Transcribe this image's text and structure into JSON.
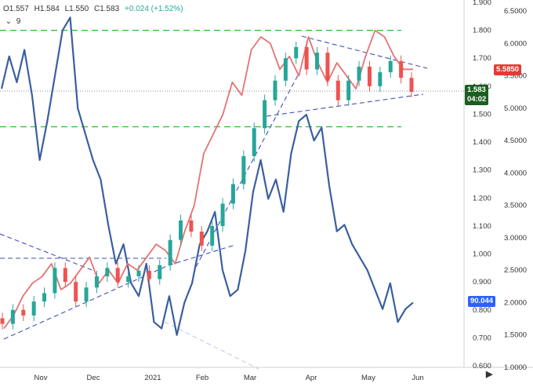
{
  "header": {
    "open": "O1.557",
    "high": "H1.584",
    "low": "L1.550",
    "close": "C1.583",
    "change": "+0.024 (+1.52%)",
    "indicator_count": "9"
  },
  "tags": {
    "price": "1.583",
    "countdown": "04:02",
    "red_value": "5.5850",
    "blue_value": "90.044"
  },
  "colors": {
    "up": "#26a69a",
    "down": "#ef5350",
    "blue_line": "#3a5fa0",
    "red_line": "#e57373",
    "dashed_blue": "#3f51b5",
    "dashed_green": "#2ebd2e",
    "price_tag": "#1b5e20",
    "blue_tag": "#2962ff",
    "red_tag": "#e53935"
  },
  "chart_data": {
    "type": "line",
    "x_ticks": [
      "Nov",
      "Dec",
      "2021",
      "Feb",
      "Mar",
      "Apr",
      "May",
      "Jun"
    ],
    "y_left_ticks": [
      "1.900",
      "1.800",
      "1.700",
      "1.600",
      "1.500",
      "1.400",
      "1.300",
      "1.200",
      "1.100",
      "1.000",
      "0.900",
      "0.800",
      "0.700",
      "0.600"
    ],
    "y_right_ticks": [
      "6.5000",
      "6.0000",
      "5.5000",
      "5.0000",
      "4.5000",
      "4.0000",
      "3.5000",
      "3.0000",
      "2.5000",
      "2.0000",
      "1.5000",
      "1.0000"
    ],
    "ylim_price": [
      0.6,
      1.9
    ],
    "ylim_secondary": [
      1.0,
      6.5
    ],
    "horizontal_levels": [
      1.8,
      1.455
    ],
    "candles_weekly_sampled": [
      {
        "o": 0.77,
        "c": 0.75
      },
      {
        "o": 0.75,
        "c": 0.8
      },
      {
        "o": 0.8,
        "c": 0.78
      },
      {
        "o": 0.78,
        "c": 0.83
      },
      {
        "o": 0.83,
        "c": 0.86
      },
      {
        "o": 0.86,
        "c": 0.95
      },
      {
        "o": 0.95,
        "c": 0.9
      },
      {
        "o": 0.9,
        "c": 0.83
      },
      {
        "o": 0.83,
        "c": 0.88
      },
      {
        "o": 0.88,
        "c": 0.92
      },
      {
        "o": 0.92,
        "c": 0.95
      },
      {
        "o": 0.95,
        "c": 0.9
      },
      {
        "o": 0.9,
        "c": 0.92
      },
      {
        "o": 0.92,
        "c": 0.94
      },
      {
        "o": 0.94,
        "c": 0.91
      },
      {
        "o": 0.91,
        "c": 0.96
      },
      {
        "o": 0.96,
        "c": 1.05
      },
      {
        "o": 1.05,
        "c": 1.12
      },
      {
        "o": 1.12,
        "c": 1.08
      },
      {
        "o": 1.08,
        "c": 1.03
      },
      {
        "o": 1.03,
        "c": 1.1
      },
      {
        "o": 1.1,
        "c": 1.18
      },
      {
        "o": 1.18,
        "c": 1.25
      },
      {
        "o": 1.25,
        "c": 1.35
      },
      {
        "o": 1.35,
        "c": 1.45
      },
      {
        "o": 1.45,
        "c": 1.55
      },
      {
        "o": 1.55,
        "c": 1.62
      },
      {
        "o": 1.62,
        "c": 1.7
      },
      {
        "o": 1.7,
        "c": 1.74
      },
      {
        "o": 1.74,
        "c": 1.66
      },
      {
        "o": 1.66,
        "c": 1.72
      },
      {
        "o": 1.72,
        "c": 1.62
      },
      {
        "o": 1.62,
        "c": 1.55
      },
      {
        "o": 1.55,
        "c": 1.62
      },
      {
        "o": 1.62,
        "c": 1.67
      },
      {
        "o": 1.67,
        "c": 1.6
      },
      {
        "o": 1.6,
        "c": 1.65
      },
      {
        "o": 1.65,
        "c": 1.69
      },
      {
        "o": 1.69,
        "c": 1.63
      },
      {
        "o": 1.63,
        "c": 1.58
      }
    ],
    "blue_series_secondary": [
      5.3,
      5.8,
      5.4,
      5.9,
      5.2,
      4.2,
      4.8,
      5.5,
      6.2,
      6.4,
      5.0,
      4.6,
      4.2,
      3.9,
      3.2,
      2.6,
      2.9,
      2.3,
      2.1,
      2.6,
      1.7,
      1.6,
      2.1,
      1.5,
      2.0,
      2.3,
      2.9,
      3.1,
      3.4,
      2.5,
      2.1,
      2.2,
      2.8,
      3.7,
      4.2,
      3.6,
      3.9,
      3.4,
      4.3,
      4.8,
      4.9,
      4.5,
      4.7,
      3.8,
      3.1,
      3.2,
      2.9,
      2.7,
      2.5,
      2.2,
      1.9,
      2.3,
      1.7,
      1.9,
      2.0
    ],
    "red_series_secondary": [
      1.6,
      1.8,
      2.1,
      2.3,
      2.4,
      2.6,
      2.2,
      2.3,
      2.5,
      2.7,
      2.3,
      2.5,
      2.3,
      2.6,
      2.5,
      2.7,
      2.9,
      2.8,
      2.6,
      3.1,
      3.5,
      4.3,
      4.6,
      4.9,
      5.4,
      5.2,
      5.9,
      6.1,
      6.0,
      5.6,
      5.8,
      5.5,
      6.1,
      5.7,
      5.4,
      5.7,
      5.5,
      5.3,
      5.8,
      6.2,
      6.1,
      5.8,
      5.6,
      5.6
    ]
  }
}
